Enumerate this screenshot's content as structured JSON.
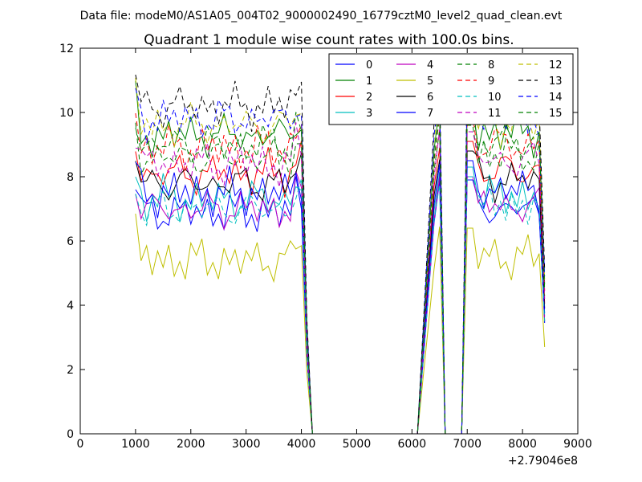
{
  "chart_data": {
    "type": "line",
    "suptitle": "Data file: modeM0/AS1A05_004T02_9000002490_16779cztM0_level2_quad_clean.evt",
    "title": "Quadrant 1 module wise count rates with 100.0s bins.",
    "xlabel": "",
    "ylabel": "",
    "xlim": [
      0,
      9000
    ],
    "ylim": [
      0,
      12
    ],
    "xticks": [
      0,
      1000,
      2000,
      3000,
      4000,
      5000,
      6000,
      7000,
      8000,
      9000
    ],
    "yticks": [
      0,
      2,
      4,
      6,
      8,
      10,
      12
    ],
    "x_offset_label": "+2.79046e8",
    "grid": false,
    "legend_position": "top-right",
    "legend_columns": 4,
    "bin_size_s": 100,
    "series": [
      {
        "name": "0",
        "color": "#0000ff",
        "style": "solid",
        "base": 6.9
      },
      {
        "name": "1",
        "color": "#008000",
        "style": "solid",
        "base": 9.3
      },
      {
        "name": "2",
        "color": "#ff0000",
        "style": "solid",
        "base": 8.1
      },
      {
        "name": "3",
        "color": "#00bfbf",
        "style": "solid",
        "base": 7.3
      },
      {
        "name": "4",
        "color": "#bf00bf",
        "style": "solid",
        "base": 7.0
      },
      {
        "name": "5",
        "color": "#bfbf00",
        "style": "solid",
        "base": 5.4
      },
      {
        "name": "6",
        "color": "#000000",
        "style": "solid",
        "base": 7.8
      },
      {
        "name": "7",
        "color": "#0000ff",
        "style": "solid",
        "base": 7.5
      },
      {
        "name": "8",
        "color": "#008000",
        "style": "dashed",
        "base": 8.6
      },
      {
        "name": "9",
        "color": "#ff0000",
        "style": "dashed",
        "base": 8.9
      },
      {
        "name": "10",
        "color": "#00bfbf",
        "style": "dashed",
        "base": 7.0
      },
      {
        "name": "11",
        "color": "#bf00bf",
        "style": "dashed",
        "base": 8.4
      },
      {
        "name": "12",
        "color": "#bfbf00",
        "style": "dashed",
        "base": 9.6
      },
      {
        "name": "13",
        "color": "#000000",
        "style": "dashed",
        "base": 10.2
      },
      {
        "name": "14",
        "color": "#0000ff",
        "style": "dashed",
        "base": 9.8
      },
      {
        "name": "15",
        "color": "#008000",
        "style": "dashed",
        "base": 9.0
      }
    ]
  }
}
